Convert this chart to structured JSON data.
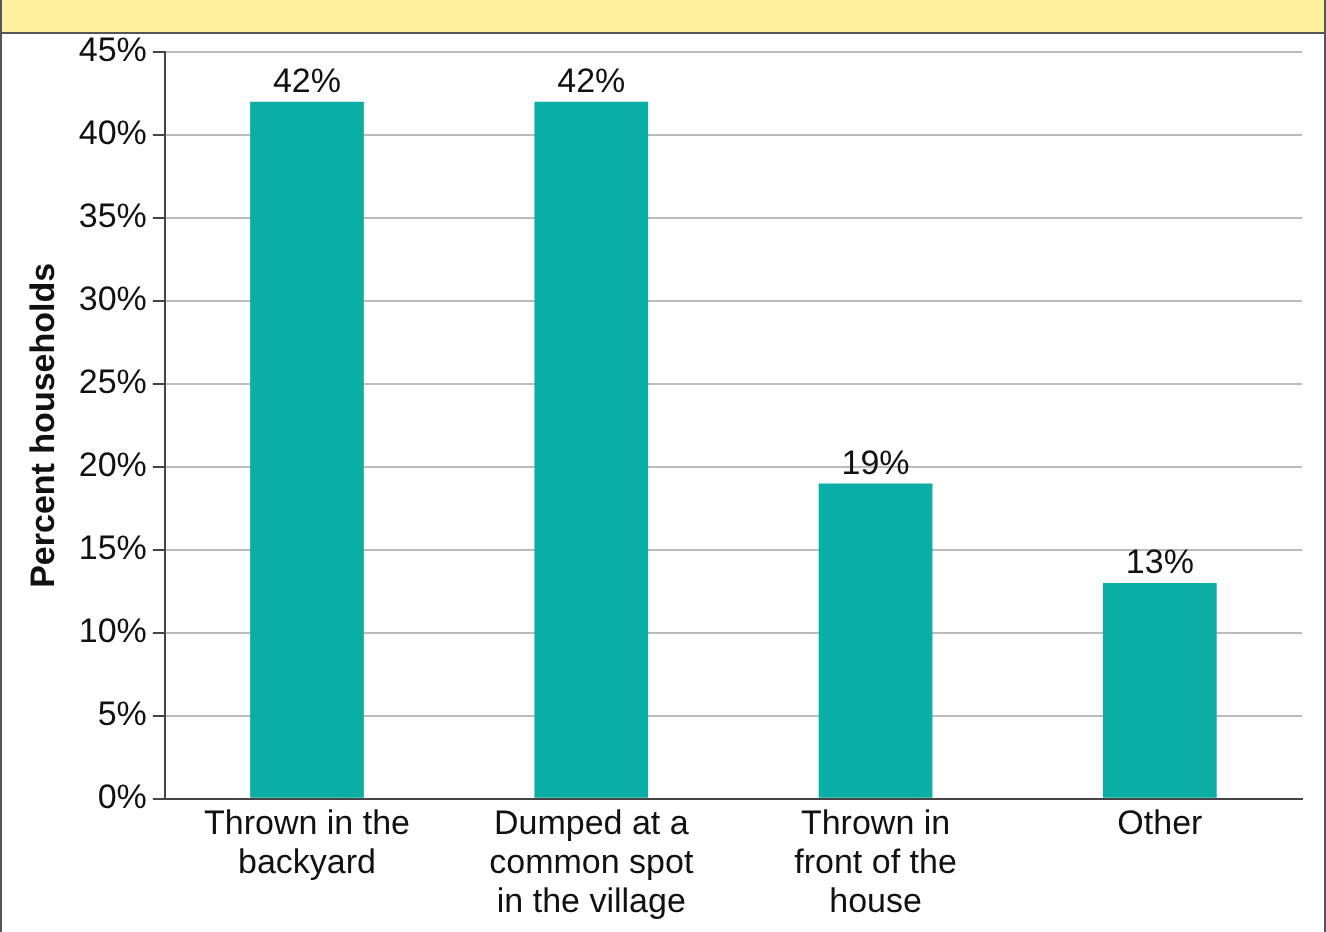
{
  "chart_data": {
    "type": "bar",
    "ylabel": "Percent households",
    "categories": [
      "Thrown in the backyard",
      "Dumped at a common spot in the village",
      "Thrown in front of the house",
      "Other"
    ],
    "values": [
      42,
      42,
      19,
      13
    ],
    "value_labels": [
      "42%",
      "42%",
      "19%",
      "13%"
    ],
    "color": "#0aaea5",
    "ylim": [
      0,
      45
    ],
    "yticks": [
      {
        "value": 0,
        "label": "0%"
      },
      {
        "value": 5,
        "label": "5%"
      },
      {
        "value": 10,
        "label": "10%"
      },
      {
        "value": 15,
        "label": "15%"
      },
      {
        "value": 20,
        "label": "20%"
      },
      {
        "value": 25,
        "label": "25%"
      },
      {
        "value": 30,
        "label": "30%"
      },
      {
        "value": 35,
        "label": "35%"
      },
      {
        "value": 40,
        "label": "40%"
      },
      {
        "value": 45,
        "label": "45%"
      }
    ],
    "grid": "y",
    "legend": false
  }
}
